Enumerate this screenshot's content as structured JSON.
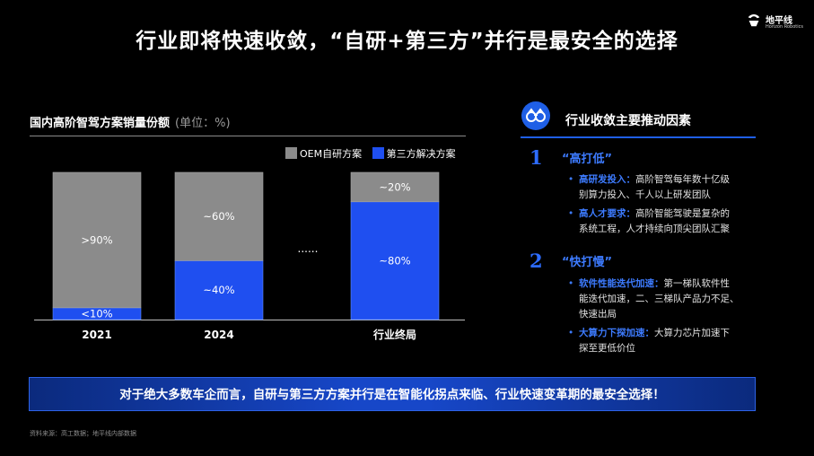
{
  "slide": {
    "title": "行业即将快速收敛，“自研+第三方”并行是最安全的选择",
    "logo": {
      "name": "地平线",
      "sub": "Horizon Robotics"
    },
    "banner": "对于绝大多数车企而言，自研与第三方方案并行是在智能化拐点来临、行业快速变革期的最安全选择！",
    "source": "资料来源：高工数据；地平线内部数据",
    "colors": {
      "oem": "#8b8b8b",
      "third_party": "#1f4ff0",
      "accent": "#3d7bff"
    }
  },
  "chart_heading": {
    "title": "国内高阶智驾方案销量份额",
    "unit": "(单位：%)"
  },
  "chart_data": {
    "type": "bar",
    "stacked": true,
    "categories": [
      "2021",
      "2024",
      "行业终局"
    ],
    "series": [
      {
        "name": "第三方解决方案",
        "values": [
          8,
          40,
          80
        ],
        "labels": [
          "<10%",
          "~40%",
          "~80%"
        ]
      },
      {
        "name": "OEM自研方案",
        "values": [
          92,
          60,
          20
        ],
        "labels": [
          ">90%",
          "~60%",
          "~20%"
        ]
      }
    ],
    "ellipsis": "......",
    "legend_position": "top-right",
    "ylim": [
      0,
      100
    ],
    "grid": false
  },
  "panel": {
    "icon": "binoculars-icon",
    "title": "行业收敛主要推动因素",
    "sections": [
      {
        "num": "1",
        "title": "“高打低”",
        "bullets": [
          {
            "key": "高研发投入：",
            "lines": [
              "高阶智驾每年数十亿级",
              "别算力投入、千人以上研发团队"
            ]
          },
          {
            "key": "高人才要求：",
            "lines": [
              "高阶智能驾驶是复杂的",
              "系统工程，人才持续向顶尖团队汇聚"
            ]
          }
        ]
      },
      {
        "num": "2",
        "title": "“快打慢”",
        "bullets": [
          {
            "key": "软件性能迭代加速：",
            "lines": [
              "第一梯队软件性",
              "能迭代加速，二、三梯队产品力不足、",
              "快速出局"
            ]
          },
          {
            "key": "大算力下探加速：",
            "lines": [
              "大算力芯片加速下",
              "探至更低价位"
            ]
          }
        ]
      }
    ]
  }
}
